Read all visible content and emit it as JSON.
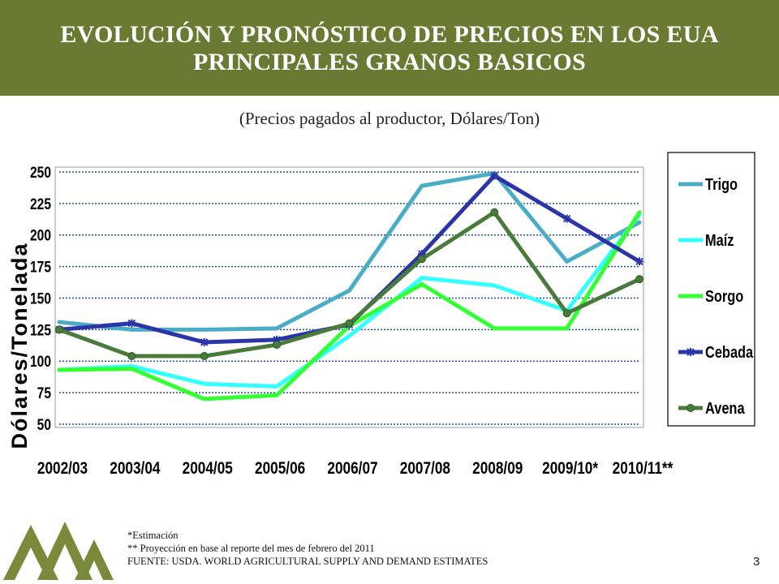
{
  "header": {
    "title_line1": "EVOLUCIÓN Y PRONÓSTICO DE PRECIOS EN LOS EUA",
    "title_line2": "PRINCIPALES GRANOS BASICOS"
  },
  "subtitle": "(Precios pagados al productor, Dólares/Ton)",
  "chart_data": {
    "type": "line",
    "title": "",
    "xlabel": "",
    "ylabel": "Dólares/Tonelada",
    "categories": [
      "2002/03",
      "2003/04",
      "2004/05",
      "2005/06",
      "2006/07",
      "2007/08",
      "2008/09",
      "2009/10*",
      "2010/11**"
    ],
    "yticks": [
      50,
      75,
      100,
      125,
      150,
      175,
      200,
      225,
      250
    ],
    "ylim": [
      50,
      250
    ],
    "grid": true,
    "legend_position": "right",
    "series": [
      {
        "name": "Trigo",
        "color": "#4bacc6",
        "marker": "none",
        "values": [
          131,
          125,
          125,
          126,
          156,
          239,
          249,
          179,
          210
        ]
      },
      {
        "name": "Maíz",
        "color": "#33ffff",
        "marker": "none",
        "values": [
          93,
          96,
          82,
          80,
          120,
          166,
          160,
          140,
          216
        ]
      },
      {
        "name": "Sorgo",
        "color": "#33ff33",
        "marker": "none",
        "values": [
          93,
          94,
          70,
          73,
          128,
          161,
          126,
          126,
          218
        ]
      },
      {
        "name": "Cebada",
        "color": "#2b35a8",
        "marker": "star",
        "values": [
          125,
          130,
          115,
          117,
          129,
          185,
          247,
          213,
          179
        ]
      },
      {
        "name": "Avena",
        "color": "#4a7b3a",
        "marker": "circle",
        "values": [
          125,
          104,
          104,
          113,
          130,
          181,
          218,
          138,
          165
        ]
      }
    ]
  },
  "footnotes": {
    "line1": "*Estimación",
    "line2": "** Proyección en base al reporte  del mes de febrero del 2011",
    "line3": "FUENTE: USDA. WORLD AGRICULTURAL SUPPLY AND DEMAND ESTIMATES"
  },
  "page_number": "3",
  "colors": {
    "banner": "#6b7a33",
    "logo": "#7a8a3a",
    "plot_area": "#ffffff",
    "gridline": "#1f4e9a"
  }
}
